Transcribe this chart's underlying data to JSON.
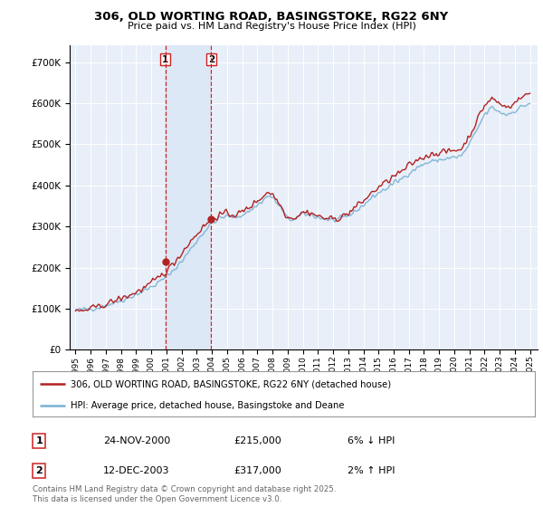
{
  "title_line1": "306, OLD WORTING ROAD, BASINGSTOKE, RG22 6NY",
  "title_line2": "Price paid vs. HM Land Registry's House Price Index (HPI)",
  "legend_line1": "306, OLD WORTING ROAD, BASINGSTOKE, RG22 6NY (detached house)",
  "legend_line2": "HPI: Average price, detached house, Basingstoke and Deane",
  "transaction1_num": "1",
  "transaction1_date": "24-NOV-2000",
  "transaction1_price": "£215,000",
  "transaction1_hpi": "6% ↓ HPI",
  "transaction2_num": "2",
  "transaction2_date": "12-DEC-2003",
  "transaction2_price": "£317,000",
  "transaction2_hpi": "2% ↑ HPI",
  "footer": "Contains HM Land Registry data © Crown copyright and database right 2025.\nThis data is licensed under the Open Government Licence v3.0.",
  "vline1_x": 2000.92,
  "vline2_x": 2003.96,
  "marker1_x": 2000.92,
  "marker1_y": 215000,
  "marker2_x": 2003.96,
  "marker2_y": 317000,
  "hpi_color": "#7ab0d4",
  "price_color": "#b22222",
  "vline_color": "#cc2222",
  "span_color": "#dce8f5",
  "background_color": "#ffffff",
  "plot_bg_color": "#e8eff8",
  "ylim": [
    0,
    740000
  ],
  "yticks": [
    0,
    100000,
    200000,
    300000,
    400000,
    500000,
    600000,
    700000
  ],
  "xmin": 1994.6,
  "xmax": 2025.5,
  "hpi_knots": [
    [
      1995.0,
      96000
    ],
    [
      1995.5,
      98000
    ],
    [
      1996.0,
      100000
    ],
    [
      1996.5,
      103000
    ],
    [
      1997.0,
      108000
    ],
    [
      1997.5,
      114000
    ],
    [
      1998.0,
      120000
    ],
    [
      1998.5,
      127000
    ],
    [
      1999.0,
      135000
    ],
    [
      1999.5,
      143000
    ],
    [
      2000.0,
      153000
    ],
    [
      2000.5,
      164000
    ],
    [
      2001.0,
      178000
    ],
    [
      2001.5,
      195000
    ],
    [
      2002.0,
      215000
    ],
    [
      2002.5,
      240000
    ],
    [
      2003.0,
      265000
    ],
    [
      2003.5,
      288000
    ],
    [
      2004.0,
      308000
    ],
    [
      2004.5,
      320000
    ],
    [
      2005.0,
      325000
    ],
    [
      2005.5,
      322000
    ],
    [
      2006.0,
      328000
    ],
    [
      2006.5,
      338000
    ],
    [
      2007.0,
      352000
    ],
    [
      2007.5,
      368000
    ],
    [
      2007.75,
      375000
    ],
    [
      2008.0,
      370000
    ],
    [
      2008.5,
      348000
    ],
    [
      2009.0,
      318000
    ],
    [
      2009.5,
      318000
    ],
    [
      2010.0,
      330000
    ],
    [
      2010.5,
      330000
    ],
    [
      2011.0,
      322000
    ],
    [
      2011.5,
      318000
    ],
    [
      2012.0,
      315000
    ],
    [
      2012.5,
      318000
    ],
    [
      2013.0,
      325000
    ],
    [
      2013.5,
      338000
    ],
    [
      2014.0,
      352000
    ],
    [
      2014.5,
      368000
    ],
    [
      2015.0,
      382000
    ],
    [
      2015.5,
      392000
    ],
    [
      2016.0,
      405000
    ],
    [
      2016.5,
      415000
    ],
    [
      2017.0,
      430000
    ],
    [
      2017.5,
      442000
    ],
    [
      2018.0,
      452000
    ],
    [
      2018.5,
      458000
    ],
    [
      2019.0,
      462000
    ],
    [
      2019.5,
      465000
    ],
    [
      2020.0,
      468000
    ],
    [
      2020.5,
      472000
    ],
    [
      2021.0,
      500000
    ],
    [
      2021.5,
      535000
    ],
    [
      2022.0,
      572000
    ],
    [
      2022.5,
      590000
    ],
    [
      2023.0,
      578000
    ],
    [
      2023.5,
      572000
    ],
    [
      2024.0,
      582000
    ],
    [
      2024.5,
      592000
    ],
    [
      2025.0,
      600000
    ]
  ],
  "price_knots": [
    [
      1995.0,
      92000
    ],
    [
      1995.5,
      95000
    ],
    [
      1996.0,
      100000
    ],
    [
      1996.5,
      105000
    ],
    [
      1997.0,
      111000
    ],
    [
      1997.5,
      118000
    ],
    [
      1998.0,
      125000
    ],
    [
      1998.5,
      132000
    ],
    [
      1999.0,
      140000
    ],
    [
      1999.5,
      150000
    ],
    [
      2000.0,
      162000
    ],
    [
      2000.5,
      176000
    ],
    [
      2001.0,
      192000
    ],
    [
      2001.5,
      212000
    ],
    [
      2002.0,
      235000
    ],
    [
      2002.5,
      260000
    ],
    [
      2003.0,
      282000
    ],
    [
      2003.5,
      302000
    ],
    [
      2004.0,
      318000
    ],
    [
      2004.5,
      328000
    ],
    [
      2005.0,
      332000
    ],
    [
      2005.5,
      328000
    ],
    [
      2006.0,
      335000
    ],
    [
      2006.5,
      348000
    ],
    [
      2007.0,
      362000
    ],
    [
      2007.5,
      378000
    ],
    [
      2007.75,
      385000
    ],
    [
      2008.0,
      378000
    ],
    [
      2008.5,
      354000
    ],
    [
      2009.0,
      322000
    ],
    [
      2009.5,
      322000
    ],
    [
      2010.0,
      335000
    ],
    [
      2010.5,
      334000
    ],
    [
      2011.0,
      325000
    ],
    [
      2011.5,
      320000
    ],
    [
      2012.0,
      318000
    ],
    [
      2012.5,
      322000
    ],
    [
      2013.0,
      332000
    ],
    [
      2013.5,
      348000
    ],
    [
      2014.0,
      362000
    ],
    [
      2014.5,
      380000
    ],
    [
      2015.0,
      395000
    ],
    [
      2015.5,
      408000
    ],
    [
      2016.0,
      422000
    ],
    [
      2016.5,
      432000
    ],
    [
      2017.0,
      448000
    ],
    [
      2017.5,
      460000
    ],
    [
      2018.0,
      470000
    ],
    [
      2018.5,
      476000
    ],
    [
      2019.0,
      480000
    ],
    [
      2019.5,
      482000
    ],
    [
      2020.0,
      485000
    ],
    [
      2020.5,
      490000
    ],
    [
      2021.0,
      520000
    ],
    [
      2021.5,
      558000
    ],
    [
      2022.0,
      595000
    ],
    [
      2022.5,
      612000
    ],
    [
      2023.0,
      598000
    ],
    [
      2023.5,
      590000
    ],
    [
      2024.0,
      602000
    ],
    [
      2024.5,
      615000
    ],
    [
      2025.0,
      625000
    ]
  ]
}
